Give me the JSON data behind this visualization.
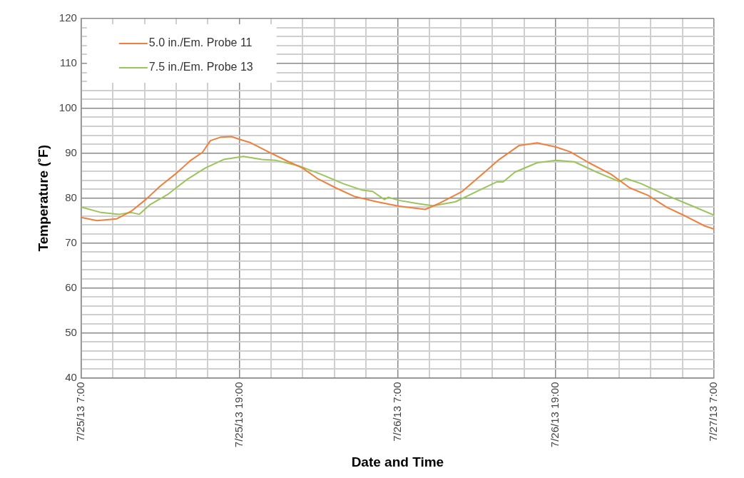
{
  "chart_data": {
    "type": "line",
    "xlabel": "Date and Time",
    "ylabel": "Temperature (˚F)",
    "xlim": [
      "--07-25T07:00",
      "--07-27T07:00"
    ],
    "xticks": [
      {
        "value": "--07-25T07:00",
        "label": "7/25/13 7:00"
      },
      {
        "value": "--07-25T09:24",
        "label": null
      },
      {
        "value": "--07-25T11:48",
        "label": null
      },
      {
        "value": "--07-25T14:12",
        "label": null
      },
      {
        "value": "--07-25T16:36",
        "label": null
      },
      {
        "value": "--07-25T19:00",
        "label": "7/25/13 19:00"
      },
      {
        "value": "--07-25T21:24",
        "label": null
      },
      {
        "value": "--07-25T23:48",
        "label": null
      },
      {
        "value": "--07-26T02:12",
        "label": null
      },
      {
        "value": "--07-26T04:36",
        "label": null
      },
      {
        "value": "--07-26T07:00",
        "label": "7/26/13 7:00"
      },
      {
        "value": "--07-26T09:24",
        "label": null
      },
      {
        "value": "--07-26T11:48",
        "label": null
      },
      {
        "value": "--07-26T14:12",
        "label": null
      },
      {
        "value": "--07-26T16:36",
        "label": null
      },
      {
        "value": "--07-26T19:00",
        "label": "7/26/13 19:00"
      },
      {
        "value": "--07-26T21:24",
        "label": null
      },
      {
        "value": "--07-26T23:48",
        "label": null
      },
      {
        "value": "--07-27T02:12",
        "label": null
      },
      {
        "value": "--07-27T04:36",
        "label": null
      },
      {
        "value": "--07-27T07:00",
        "label": "7/27/13 7:00"
      }
    ],
    "ylim": [
      40,
      120
    ],
    "yticks": [
      40,
      {
        "value": 42,
        "label": null
      },
      {
        "value": 44,
        "label": null
      },
      {
        "value": 46,
        "label": null
      },
      {
        "value": 48,
        "label": null
      },
      50,
      {
        "value": 52,
        "label": null
      },
      {
        "value": 54,
        "label": null
      },
      {
        "value": 56,
        "label": null
      },
      {
        "value": 58,
        "label": null
      },
      60,
      {
        "value": 62,
        "label": null
      },
      {
        "value": 64,
        "label": null
      },
      {
        "value": 66,
        "label": null
      },
      {
        "value": 68,
        "label": null
      },
      70,
      {
        "value": 72,
        "label": null
      },
      {
        "value": 74,
        "label": null
      },
      {
        "value": 76,
        "label": null
      },
      {
        "value": 78,
        "label": null
      },
      80,
      {
        "value": 82,
        "label": null
      },
      {
        "value": 84,
        "label": null
      },
      {
        "value": 86,
        "label": null
      },
      {
        "value": 88,
        "label": null
      },
      90,
      {
        "value": 92,
        "label": null
      },
      {
        "value": 94,
        "label": null
      },
      {
        "value": 96,
        "label": null
      },
      {
        "value": 98,
        "label": null
      },
      100,
      {
        "value": 102,
        "label": null
      },
      {
        "value": 104,
        "label": null
      },
      {
        "value": 106,
        "label": null
      },
      {
        "value": 108,
        "label": null
      },
      110,
      {
        "value": 112,
        "label": null
      },
      {
        "value": 114,
        "label": null
      },
      {
        "value": 116,
        "label": null
      },
      {
        "value": 118,
        "label": null
      },
      120
    ],
    "grid": true,
    "legend": "top left",
    "marker": "none",
    "line_style": "solid",
    "series": [
      {
        "name": "5.0 in./Em. Probe 11",
        "color": "#f07f3c",
        "x": [
          "--07-25T07:00",
          "--07-25T08:12",
          "--07-25T09:42",
          "--07-25T10:48",
          "--07-25T11:54",
          "--07-25T13:00",
          "--07-25T14:12",
          "--07-25T15:18",
          "--07-25T16:12",
          "--07-25T16:48",
          "--07-25T17:36",
          "--07-25T18:24",
          "--07-25T19:00",
          "--07-25T19:48",
          "--07-25T21:12",
          "--07-25T22:36",
          "--07-25T23:48",
          "--07-26T00:54",
          "--07-26T02:18",
          "--07-26T03:42",
          "--07-26T05:24",
          "--07-26T07:06",
          "--07-26T09:06",
          "--07-26T10:12",
          "--07-26T11:54",
          "--07-26T13:36",
          "--07-26T14:42",
          "--07-26T16:12",
          "--07-26T17:36",
          "--07-26T19:00",
          "--07-26T20:06",
          "--07-26T21:30",
          "--07-26T23:12",
          "--07-27T00:36",
          "--07-27T02:00",
          "--07-27T03:24",
          "--07-27T04:54",
          "--07-27T06:18",
          "--07-27T07:00"
        ],
        "values": [
          75.7,
          75.0,
          75.4,
          77.1,
          79.7,
          82.7,
          85.5,
          88.4,
          90.2,
          92.8,
          93.6,
          93.7,
          93.1,
          92.4,
          90.3,
          88.3,
          86.7,
          84.4,
          82.3,
          80.4,
          79.2,
          78.2,
          77.5,
          78.9,
          81.5,
          85.8,
          88.6,
          91.7,
          92.3,
          91.4,
          90.3,
          87.9,
          85.3,
          82.3,
          80.6,
          78.0,
          75.9,
          73.8,
          73.1
        ]
      },
      {
        "name": "7.5 in./Em. Probe 13",
        "color": "#9bc45a",
        "x": [
          "--07-25T07:00",
          "--07-25T08:30",
          "--07-25T09:54",
          "--07-25T10:48",
          "--07-25T11:24",
          "--07-25T12:12",
          "--07-25T13:36",
          "--07-25T15:00",
          "--07-25T16:24",
          "--07-25T17:48",
          "--07-25T19:18",
          "--07-25T20:42",
          "--07-25T21:48",
          "--07-25T23:30",
          "--07-26T01:12",
          "--07-26T02:54",
          "--07-26T04:18",
          "--07-26T05:06",
          "--07-26T06:00",
          "--07-26T06:18",
          "--07-26T07:06",
          "--07-26T08:30",
          "--07-26T09:42",
          "--07-26T11:24",
          "--07-26T13:00",
          "--07-26T14:30",
          "--07-26T15:00",
          "--07-26T15:54",
          "--07-26T17:36",
          "--07-26T19:00",
          "--07-26T20:24",
          "--07-26T22:06",
          "--07-26T23:48",
          "--07-27T00:18",
          "--07-27T01:30",
          "--07-27T03:12",
          "--07-27T04:54",
          "--07-27T07:00"
        ],
        "values": [
          78.0,
          76.8,
          76.4,
          76.8,
          76.4,
          78.5,
          80.9,
          84.1,
          86.7,
          88.6,
          89.3,
          88.6,
          88.4,
          87.2,
          85.3,
          83.2,
          81.8,
          81.5,
          79.7,
          80.2,
          79.5,
          78.8,
          78.3,
          79.2,
          81.5,
          83.6,
          83.6,
          85.8,
          87.9,
          88.4,
          88.1,
          85.8,
          83.7,
          84.4,
          83.2,
          80.9,
          78.8,
          76.2
        ]
      }
    ]
  }
}
